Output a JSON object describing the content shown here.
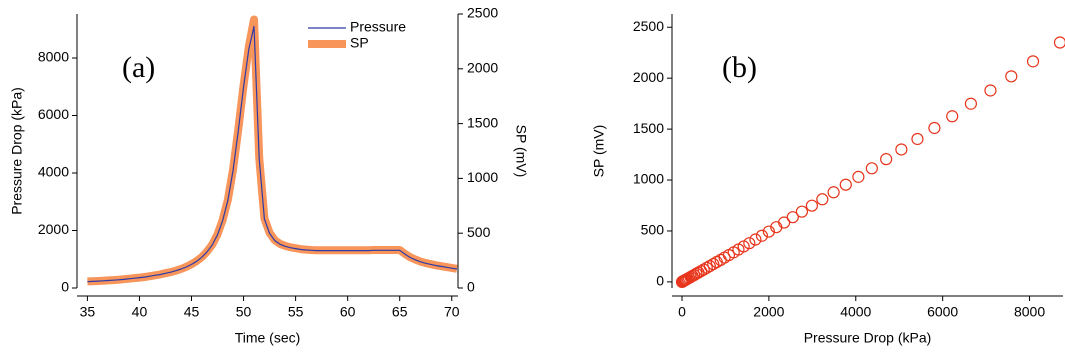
{
  "chart_data": [
    {
      "type": "line",
      "annotation": "(a)",
      "xlabel": "Time (sec)",
      "ylabel": "Pressure Drop (kPa)",
      "y2label": "SP (mV)",
      "legend": "top-right",
      "x": [
        35,
        35.5,
        36,
        36.5,
        37,
        37.5,
        38,
        38.5,
        39,
        39.5,
        40,
        40.5,
        41,
        41.5,
        42,
        42.5,
        43,
        43.5,
        44,
        44.5,
        45,
        45.5,
        46,
        46.5,
        47,
        47.5,
        48,
        48.5,
        49,
        49.5,
        50,
        50.5,
        51,
        51.5,
        52,
        52.5,
        53,
        53.5,
        54,
        54.5,
        55,
        55.5,
        56,
        56.5,
        57,
        57.5,
        58,
        58.5,
        59,
        59.5,
        60,
        60.5,
        61,
        61.5,
        62,
        62.5,
        63,
        63.5,
        64,
        64.5,
        65,
        65.5,
        66,
        66.5,
        67,
        67.5,
        68,
        68.5,
        69,
        69.5,
        70,
        70.5
      ],
      "series": [
        {
          "name": "Pressure",
          "color": "#2e3aa8",
          "width": 1.2,
          "values": [
            220,
            230,
            240,
            250,
            260,
            270,
            285,
            300,
            320,
            340,
            360,
            380,
            410,
            440,
            470,
            510,
            550,
            600,
            660,
            730,
            820,
            930,
            1070,
            1260,
            1500,
            1850,
            2350,
            3050,
            4100,
            5500,
            7000,
            8300,
            9100,
            4500,
            2400,
            1900,
            1650,
            1520,
            1450,
            1400,
            1370,
            1340,
            1320,
            1310,
            1300,
            1300,
            1300,
            1300,
            1300,
            1300,
            1300,
            1300,
            1300,
            1300,
            1300,
            1310,
            1310,
            1310,
            1310,
            1310,
            1310,
            1180,
            1060,
            980,
            910,
            860,
            820,
            780,
            750,
            720,
            690,
            660
          ]
        },
        {
          "name": "SP",
          "color": "#f7955a",
          "width": 8,
          "axis": "y2",
          "values": [
            60,
            62,
            64,
            66,
            69,
            72,
            76,
            80,
            85,
            90,
            95,
            100,
            108,
            116,
            124,
            135,
            145,
            158,
            174,
            193,
            217,
            246,
            283,
            333,
            397,
            490,
            622,
            807,
            1085,
            1455,
            1850,
            2200,
            2450,
            1190,
            635,
            503,
            437,
            402,
            384,
            371,
            363,
            355,
            350,
            347,
            345,
            345,
            345,
            345,
            345,
            345,
            345,
            345,
            345,
            345,
            345,
            347,
            347,
            347,
            347,
            347,
            347,
            312,
            281,
            260,
            241,
            228,
            217,
            207,
            199,
            191,
            183,
            175
          ]
        }
      ],
      "xlim": [
        34,
        70.6
      ],
      "xticks": [
        35,
        40,
        45,
        50,
        55,
        60,
        65,
        70
      ],
      "ylim": [
        0,
        9530
      ],
      "yticks": [
        0,
        2000,
        4000,
        6000,
        8000
      ],
      "y2lim": [
        0,
        2500
      ],
      "y2ticks": [
        0,
        500,
        1000,
        1500,
        2000,
        2500
      ]
    },
    {
      "type": "scatter",
      "annotation": "(b)",
      "xlabel": "Pressure Drop (kPa)",
      "ylabel": "SP (mV)",
      "color": "#e8351c",
      "x": [
        0,
        10,
        20,
        40,
        60,
        80,
        100,
        130,
        160,
        200,
        240,
        280,
        330,
        380,
        440,
        500,
        570,
        640,
        720,
        800,
        890,
        980,
        1080,
        1190,
        1300,
        1420,
        1550,
        1690,
        1840,
        2000,
        2170,
        2350,
        2550,
        2760,
        2990,
        3230,
        3490,
        3770,
        4060,
        4370,
        4700,
        5050,
        5420,
        5810,
        6220,
        6650,
        7100,
        7580,
        8080,
        8700
      ],
      "values": [
        0,
        2,
        5,
        10,
        14,
        19,
        24,
        31,
        39,
        48,
        58,
        67,
        80,
        92,
        106,
        121,
        138,
        155,
        175,
        195,
        216,
        239,
        263,
        290,
        318,
        348,
        380,
        416,
        453,
        494,
        537,
        583,
        635,
        689,
        748,
        811,
        880,
        954,
        1031,
        1115,
        1205,
        1300,
        1403,
        1511,
        1626,
        1749,
        1879,
        2018,
        2165,
        2350
      ],
      "xlim": [
        -230,
        8770
      ],
      "xticks": [
        0,
        2000,
        4000,
        6000,
        8000
      ],
      "ylim": [
        -60,
        2630
      ],
      "yticks": [
        0,
        500,
        1000,
        1500,
        2000,
        2500
      ]
    }
  ]
}
